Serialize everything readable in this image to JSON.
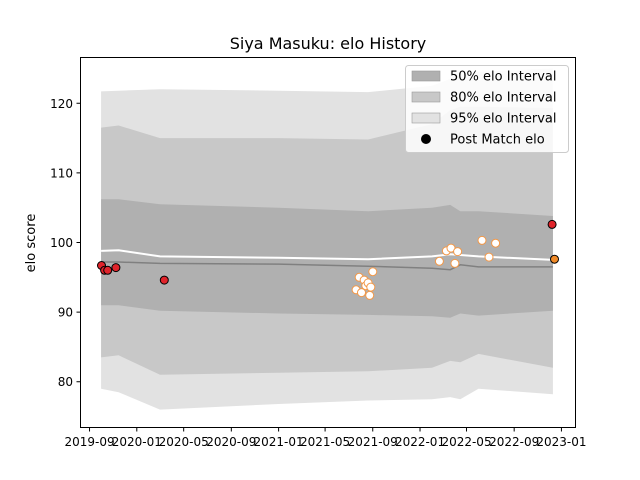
{
  "chart_data": {
    "type": "scatter",
    "title": "Siya Masuku: elo History",
    "xlabel": "",
    "ylabel": "elo score",
    "xlim": [
      "2019-08-10",
      "2023-02-05"
    ],
    "ylim": [
      73.5,
      126.5
    ],
    "x_ticks": [
      "2019-09",
      "2020-01",
      "2020-05",
      "2020-09",
      "2021-01",
      "2021-05",
      "2021-09",
      "2022-01",
      "2022-05",
      "2022-09",
      "2023-01"
    ],
    "y_ticks": [
      80,
      90,
      100,
      110,
      120
    ],
    "grid": false,
    "legend_position": "top-right",
    "legend": [
      {
        "label": "50% elo Interval",
        "kind": "band",
        "color": "#b0b0b0"
      },
      {
        "label": "80% elo Interval",
        "kind": "band",
        "color": "#c8c8c8"
      },
      {
        "label": "95% elo Interval",
        "kind": "band",
        "color": "#e2e2e2"
      },
      {
        "label": "Post Match elo",
        "kind": "marker",
        "color": "#000000"
      }
    ],
    "colors": {
      "band50": "#b0b0b0",
      "band80": "#c8c8c8",
      "band95": "#e2e2e2",
      "mean_line": "#ffffff",
      "median_line": "#808080",
      "past_match_fill": "#e0242b",
      "future_match_fill": "#ffffff",
      "future_match_edge": "#f29848",
      "latest_match_fill": "#f08a28"
    },
    "bands": {
      "x": [
        "2019-10-01",
        "2019-11-15",
        "2020-03-01",
        "2021-01-01",
        "2021-08-20",
        "2022-02-01",
        "2022-03-20",
        "2022-04-15",
        "2022-06-01",
        "2022-12-10"
      ],
      "p95_hi": [
        121.7,
        121.8,
        122.0,
        121.8,
        121.6,
        122.5,
        123.5,
        124.0,
        124.5,
        125.0
      ],
      "p80_hi": [
        116.5,
        116.8,
        115.0,
        115.0,
        114.8,
        117.0,
        119.0,
        119.5,
        119.5,
        119.3
      ],
      "p50_hi": [
        106.2,
        106.2,
        105.5,
        105.0,
        104.5,
        105.0,
        105.4,
        104.5,
        104.5,
        103.8
      ],
      "p50_lo": [
        91.0,
        91.0,
        90.2,
        89.8,
        89.6,
        89.4,
        89.2,
        89.8,
        89.5,
        90.2
      ],
      "p80_lo": [
        83.5,
        83.8,
        81.0,
        81.3,
        81.5,
        82.0,
        83.0,
        82.8,
        84.0,
        82.0
      ],
      "p95_lo": [
        79.0,
        78.5,
        76.0,
        76.8,
        77.3,
        77.5,
        77.8,
        77.5,
        79.0,
        78.2
      ],
      "mean": [
        98.8,
        98.9,
        98.0,
        97.8,
        97.6,
        98.0,
        98.3,
        98.2,
        98.0,
        97.5
      ],
      "median": [
        97.2,
        97.2,
        97.0,
        96.9,
        96.6,
        96.3,
        96.1,
        96.8,
        96.5,
        96.5
      ]
    },
    "points": [
      {
        "date": "2019-10-02",
        "elo": 96.7,
        "status": "past"
      },
      {
        "date": "2019-10-10",
        "elo": 96.0,
        "status": "past"
      },
      {
        "date": "2019-10-18",
        "elo": 96.0,
        "status": "past"
      },
      {
        "date": "2019-11-08",
        "elo": 96.4,
        "status": "past"
      },
      {
        "date": "2020-03-12",
        "elo": 94.6,
        "status": "past"
      },
      {
        "date": "2021-07-20",
        "elo": 93.2,
        "status": "future"
      },
      {
        "date": "2021-07-28",
        "elo": 95.0,
        "status": "future"
      },
      {
        "date": "2021-08-03",
        "elo": 92.8,
        "status": "future"
      },
      {
        "date": "2021-08-10",
        "elo": 94.6,
        "status": "future"
      },
      {
        "date": "2021-08-14",
        "elo": 93.8,
        "status": "future"
      },
      {
        "date": "2021-08-20",
        "elo": 94.2,
        "status": "future"
      },
      {
        "date": "2021-08-24",
        "elo": 92.4,
        "status": "future"
      },
      {
        "date": "2021-08-27",
        "elo": 93.6,
        "status": "future"
      },
      {
        "date": "2021-09-01",
        "elo": 95.8,
        "status": "future"
      },
      {
        "date": "2022-02-20",
        "elo": 97.3,
        "status": "future"
      },
      {
        "date": "2022-03-10",
        "elo": 98.8,
        "status": "future"
      },
      {
        "date": "2022-03-22",
        "elo": 99.2,
        "status": "future"
      },
      {
        "date": "2022-04-01",
        "elo": 97.0,
        "status": "future"
      },
      {
        "date": "2022-04-08",
        "elo": 98.7,
        "status": "future"
      },
      {
        "date": "2022-06-10",
        "elo": 100.3,
        "status": "future"
      },
      {
        "date": "2022-06-28",
        "elo": 97.9,
        "status": "future"
      },
      {
        "date": "2022-07-15",
        "elo": 99.9,
        "status": "future"
      },
      {
        "date": "2022-12-08",
        "elo": 102.6,
        "status": "past"
      },
      {
        "date": "2022-12-14",
        "elo": 97.6,
        "status": "latest"
      }
    ]
  }
}
